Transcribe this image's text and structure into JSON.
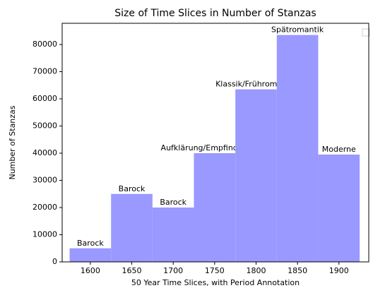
{
  "chart_data": {
    "type": "histogram",
    "title": "Size of Time Slices in Number of Stanzas",
    "x_label": "50 Year Time Slices, with Period Annotation",
    "y_label": "Number of Stanzas",
    "bins": [
      1575,
      1625,
      1675,
      1725,
      1775,
      1825,
      1875,
      1925
    ],
    "values": [
      5000,
      25000,
      20000,
      40000,
      63500,
      83500,
      39500
    ],
    "annotations": [
      "Barock",
      "Barock",
      "Barock",
      "Aufklärung/Empfindsamkeit",
      "Klassik/Frühromantik",
      "Spätromantik",
      "Moderne"
    ],
    "color": "#9999ff",
    "xlim": [
      1566,
      1936
    ],
    "ylim": [
      0,
      87800
    ],
    "xticks": [
      1600,
      1650,
      1700,
      1750,
      1800,
      1850,
      1900
    ],
    "yticks": [
      0,
      10000,
      20000,
      30000,
      40000,
      50000,
      60000,
      70000,
      80000
    ]
  }
}
